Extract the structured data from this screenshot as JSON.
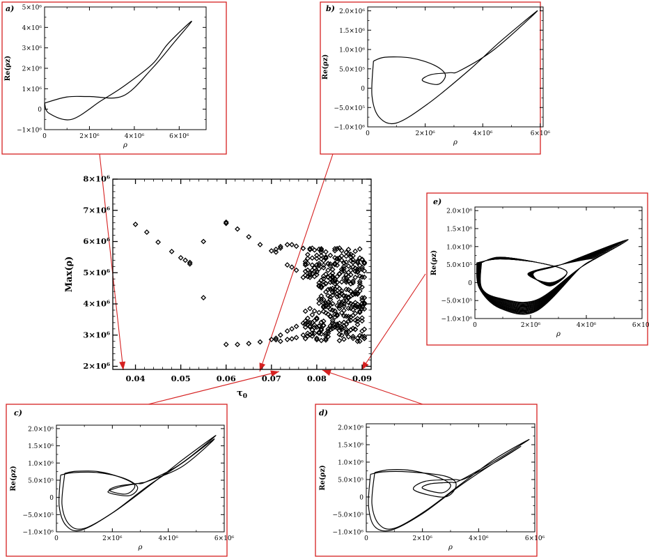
{
  "chart_data": [
    {
      "id": "main",
      "type": "scatter",
      "xlabel": "τ0",
      "ylabel": "Max(ρ)",
      "xlim": [
        0.035,
        0.092
      ],
      "ylim": [
        1900000,
        8000000
      ],
      "xticks": [
        0.04,
        0.05,
        0.06,
        0.07,
        0.08,
        0.09
      ],
      "xtick_labels": [
        "0.04",
        "0.05",
        "0.06",
        "0.07",
        "0.08",
        "0.09"
      ],
      "yticks": [
        2000000,
        3000000,
        4000000,
        5000000,
        6000000,
        7000000,
        8000000
      ],
      "ytick_labels": [
        "2×10⁶",
        "3×10⁶",
        "4×10⁶",
        "5×10⁶",
        "6×10⁶",
        "7×10⁶",
        "8×10⁶"
      ],
      "marker": "diamond",
      "points": [
        [
          0.04,
          6550000
        ],
        [
          0.0425,
          6300000
        ],
        [
          0.045,
          5980000
        ],
        [
          0.048,
          5680000
        ],
        [
          0.05,
          5480000
        ],
        [
          0.051,
          5400000
        ],
        [
          0.052,
          5330000
        ],
        [
          0.052,
          5280000
        ],
        [
          0.055,
          6000000
        ],
        [
          0.055,
          4200000
        ],
        [
          0.06,
          6620000
        ],
        [
          0.06,
          6580000
        ],
        [
          0.06,
          2700000
        ],
        [
          0.0625,
          6400000
        ],
        [
          0.0625,
          2700000
        ],
        [
          0.065,
          6150000
        ],
        [
          0.065,
          2730000
        ],
        [
          0.0675,
          5900000
        ],
        [
          0.0675,
          2780000
        ],
        [
          0.07,
          5700000
        ],
        [
          0.07,
          2860000
        ],
        [
          0.071,
          5750000
        ],
        [
          0.071,
          5660000
        ],
        [
          0.071,
          2900000
        ],
        [
          0.071,
          2850000
        ],
        [
          0.072,
          5840000
        ],
        [
          0.072,
          5790000
        ],
        [
          0.072,
          3000000
        ],
        [
          0.072,
          2800000
        ],
        [
          0.0735,
          5900000
        ],
        [
          0.0735,
          5250000
        ],
        [
          0.0735,
          3130000
        ],
        [
          0.0735,
          2860000
        ],
        [
          0.0745,
          5900000
        ],
        [
          0.0745,
          5180000
        ],
        [
          0.0745,
          3200000
        ],
        [
          0.0745,
          2880000
        ],
        [
          0.0755,
          5850000
        ],
        [
          0.0755,
          5080000
        ],
        [
          0.0755,
          3280000
        ],
        [
          0.0755,
          2920000
        ],
        [
          0.077,
          5780000
        ],
        [
          0.077,
          4850000
        ],
        [
          0.077,
          3380000
        ],
        [
          0.077,
          3000000
        ]
      ],
      "chaotic_region": {
        "x_from": 0.0775,
        "x_to": 0.0905,
        "x_step": 0.0005,
        "upper_band": [
          4800000,
          5800000
        ],
        "lower_band": [
          2800000,
          3900000
        ],
        "middle_band_start_x": 0.0805,
        "middle_band": [
          3900000,
          4800000
        ]
      }
    },
    {
      "id": "a",
      "label": "a)",
      "type": "line",
      "xlabel": "ρ",
      "ylabel": "Re(ρz)",
      "xlim": [
        0,
        7200000
      ],
      "ylim": [
        -1000000,
        5000000
      ],
      "xticks": [
        0,
        2000000,
        4000000,
        6000000
      ],
      "xtick_labels": [
        "0",
        "2×10⁶",
        "4×10⁶",
        "6×10⁶"
      ],
      "yticks": [
        -1000000,
        0,
        1000000,
        2000000,
        3000000,
        4000000,
        5000000
      ],
      "ytick_labels": [
        "−1×10⁶",
        "0",
        "1×10⁶",
        "2×10⁶",
        "3×10⁶",
        "4×10⁶",
        "5×10⁶"
      ],
      "series": [
        {
          "x": [
            0,
            1000000,
            2000000,
            3500000,
            4800000,
            5800000,
            6550000,
            5500000,
            4800000,
            3500000,
            2500000,
            1200000,
            200000,
            0
          ],
          "y": [
            300000,
            600000,
            620000,
            650000,
            2000000,
            3300000,
            4300000,
            3200000,
            2200000,
            1100000,
            400000,
            -500000,
            -200000,
            300000
          ]
        }
      ]
    },
    {
      "id": "b",
      "label": "b)",
      "type": "line",
      "xlabel": "ρ",
      "ylabel": "Re(ρz)",
      "xlim": [
        0,
        6100000
      ],
      "ylim": [
        -1000000,
        2100000
      ],
      "xticks": [
        0,
        2000000,
        4000000,
        6000000
      ],
      "xtick_labels": [
        "0",
        "2×10⁶",
        "4×10⁶",
        "6×10⁶"
      ],
      "yticks": [
        -1000000,
        -500000,
        0,
        500000,
        1000000,
        1500000,
        2000000
      ],
      "ytick_labels": [
        "−1.0×10⁶",
        "−5.0×10⁵",
        "0",
        "5.0×10⁵",
        "1.0×10⁶",
        "1.5×10⁶",
        "2.0×10⁶"
      ],
      "series": [
        {
          "x": [
            200000,
            600000,
            1500000,
            2300000,
            2700000,
            2450000,
            1900000,
            2200000,
            2850000,
            3200000,
            4400000,
            5900000,
            4600000,
            3500000,
            2100000,
            1000000,
            400000,
            150000,
            200000
          ],
          "y": [
            700000,
            800000,
            780000,
            600000,
            350000,
            100000,
            200000,
            350000,
            400000,
            450000,
            1000000,
            2000000,
            1200000,
            450000,
            -400000,
            -900000,
            -750000,
            -200000,
            700000
          ]
        }
      ]
    },
    {
      "id": "c",
      "label": "c)",
      "type": "line",
      "xlabel": "ρ",
      "ylabel": "Re(ρz)",
      "xlim": [
        0,
        6000000
      ],
      "ylim": [
        -1000000,
        2100000
      ],
      "xticks": [
        0,
        2000000,
        4000000,
        6000000
      ],
      "xtick_labels": [
        "0",
        "2×10⁶",
        "4×10⁶",
        "6×10⁶"
      ],
      "yticks": [
        -1000000,
        -500000,
        0,
        500000,
        1000000,
        1500000,
        2000000
      ],
      "ytick_labels": [
        "−1.0×10⁶",
        "−5.0×10⁵",
        "0",
        "5.0×10⁵",
        "1.0×10⁶",
        "1.5×10⁶",
        "2.0×10⁶"
      ],
      "series": [
        {
          "x": [
            300000,
            700000,
            1500000,
            2300000,
            2800000,
            2500000,
            1900000,
            2200000,
            2850000,
            3200000,
            4400000,
            5700000,
            4600000,
            3500000,
            2100000,
            1000000,
            450000,
            200000,
            300000
          ],
          "y": [
            700000,
            760000,
            750000,
            580000,
            350000,
            100000,
            200000,
            330000,
            400000,
            450000,
            950000,
            1800000,
            1150000,
            450000,
            -400000,
            -900000,
            -780000,
            -200000,
            700000
          ]
        },
        {
          "x": [
            150000,
            600000,
            1500000,
            2400000,
            2900000,
            2600000,
            1850000,
            2250000,
            3000000,
            3300000,
            4500000,
            5650000,
            4500000,
            3300000,
            2000000,
            900000,
            350000,
            100000,
            150000
          ],
          "y": [
            650000,
            720000,
            720000,
            560000,
            300000,
            50000,
            150000,
            300000,
            420000,
            480000,
            900000,
            1700000,
            1000000,
            350000,
            -450000,
            -950000,
            -820000,
            -250000,
            650000
          ]
        }
      ]
    },
    {
      "id": "d",
      "label": "d)",
      "type": "line",
      "xlabel": "ρ",
      "ylabel": "Re(ρz)",
      "xlim": [
        0,
        6000000
      ],
      "ylim": [
        -1000000,
        2100000
      ],
      "xticks": [
        0,
        2000000,
        4000000,
        6000000
      ],
      "xtick_labels": [
        "0",
        "2×10⁶",
        "4×10⁶",
        "6×10⁶"
      ],
      "yticks": [
        -1000000,
        -500000,
        0,
        500000,
        1000000,
        1500000,
        2000000
      ],
      "ytick_labels": [
        "−1.0×10⁶",
        "−5.0×10⁵",
        "0",
        "5.0×10⁵",
        "1.0×10⁶",
        "1.5×10⁶",
        "2.0×10⁶"
      ],
      "series": [
        {
          "x": [
            300000,
            800000,
            1600000,
            2500000,
            3000000,
            2700000,
            2000000,
            2300000,
            3000000,
            3300000,
            4500000,
            5800000,
            4600000,
            3500000,
            2100000,
            1000000,
            450000,
            200000,
            300000
          ],
          "y": [
            700000,
            780000,
            760000,
            580000,
            350000,
            120000,
            250000,
            380000,
            420000,
            460000,
            1000000,
            1650000,
            1100000,
            450000,
            -400000,
            -900000,
            -780000,
            -200000,
            700000
          ]
        },
        {
          "x": [
            150000,
            600000,
            1500000,
            2800000,
            3200000,
            2800000,
            1700000,
            2100000,
            3100000,
            3500000,
            4600000,
            5500000,
            4400000,
            3300000,
            2000000,
            900000,
            300000,
            80000,
            150000
          ],
          "y": [
            650000,
            720000,
            720000,
            600000,
            350000,
            0,
            200000,
            450000,
            500000,
            520000,
            1000000,
            1450000,
            900000,
            300000,
            -480000,
            -950000,
            -850000,
            -250000,
            650000
          ]
        }
      ]
    },
    {
      "id": "e",
      "label": "e)",
      "type": "line",
      "xlabel": "ρ",
      "ylabel": "Re(ρz)",
      "xlim": [
        0,
        6000000
      ],
      "ylim": [
        -1000000,
        2100000
      ],
      "xticks": [
        0,
        2000000,
        4000000,
        6000000
      ],
      "xtick_labels": [
        "0",
        "2×10⁶",
        "4×10⁶",
        "6×10⁶"
      ],
      "yticks": [
        -1000000,
        -500000,
        0,
        500000,
        1000000,
        1500000,
        2000000
      ],
      "ytick_labels": [
        "−1.0×10⁶",
        "−5.0×10⁵",
        "0",
        "5.0×10⁵",
        "1.0×10⁶",
        "1.5×10⁶",
        "2.0×10⁶"
      ],
      "attractor": {
        "outer_x_max": 5500000,
        "outer_y_max": 1200000,
        "outer_y_min": -800000,
        "inner_center_x": 2000000,
        "inner_center_y": 200000
      }
    }
  ]
}
